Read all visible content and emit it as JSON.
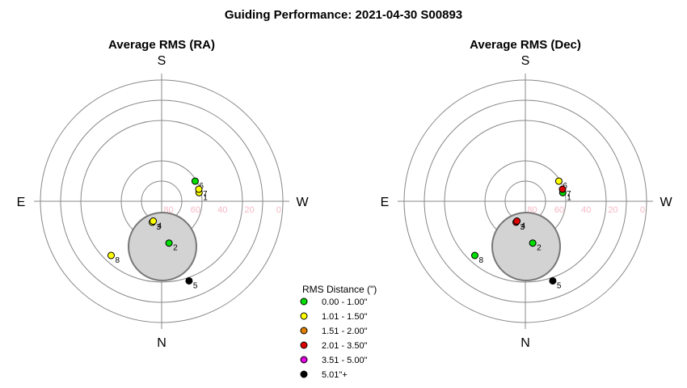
{
  "title": "Guiding Performance: 2021-04-30 S00893",
  "charts": [
    {
      "title": "Average RMS (RA)",
      "points": [
        {
          "label": "1",
          "alt": 61.5,
          "az": 283,
          "category": 1
        },
        {
          "label": "2",
          "alt": 58.5,
          "az": 190,
          "category": 0
        },
        {
          "label": "3",
          "alt": 73,
          "az": 156,
          "category": 1
        },
        {
          "label": "4",
          "alt": 74,
          "az": 157,
          "category": 1
        },
        {
          "label": "5",
          "alt": 27.5,
          "az": 199,
          "category": 5
        },
        {
          "label": "6",
          "alt": 61,
          "az": 301,
          "category": 0
        },
        {
          "label": "7",
          "alt": 61,
          "az": 288,
          "category": 1
        },
        {
          "label": "8",
          "alt": 35,
          "az": 137,
          "category": 1
        }
      ]
    },
    {
      "title": "Average RMS (Dec)",
      "points": [
        {
          "label": "1",
          "alt": 61.5,
          "az": 283,
          "category": 0
        },
        {
          "label": "2",
          "alt": 58.5,
          "az": 190,
          "category": 0
        },
        {
          "label": "3",
          "alt": 73,
          "az": 156,
          "category": 3
        },
        {
          "label": "4",
          "alt": 74,
          "az": 157,
          "category": 3
        },
        {
          "label": "5",
          "alt": 27.5,
          "az": 199,
          "category": 5
        },
        {
          "label": "6",
          "alt": 61,
          "az": 301,
          "category": 1
        },
        {
          "label": "7",
          "alt": 61,
          "az": 288,
          "category": 3
        },
        {
          "label": "8",
          "alt": 35,
          "az": 137,
          "category": 0
        }
      ]
    }
  ],
  "directions": {
    "top": "S",
    "bottom": "N",
    "left": "E",
    "right": "W"
  },
  "alt_ticks": [
    "80",
    "60",
    "40",
    "20",
    "0"
  ],
  "moon_label": "",
  "legend": {
    "title": "RMS Distance (\")",
    "items": [
      {
        "label": "0.00 - 1.00\"",
        "color": "#00dd00"
      },
      {
        "label": "1.01 - 1.50\"",
        "color": "#ffff00"
      },
      {
        "label": "1.51 - 2.00\"",
        "color": "#e08000"
      },
      {
        "label": "2.01 - 3.50\"",
        "color": "#dd0000"
      },
      {
        "label": "3.51 - 5.00\"",
        "color": "#dd00dd"
      },
      {
        "label": "5.01\"+",
        "color": "#000000"
      }
    ]
  },
  "chart_data": [
    {
      "type": "scatter",
      "title": "Average RMS (RA)",
      "coordinates": "polar alt-az (altitude deg, azimuth deg)",
      "x": [
        283,
        190,
        156,
        157,
        199,
        301,
        288,
        137
      ],
      "y": [
        61.5,
        58.5,
        73,
        74,
        27.5,
        61,
        61,
        35
      ],
      "point_labels": [
        "1",
        "2",
        "3",
        "4",
        "5",
        "6",
        "7",
        "8"
      ],
      "rms_category": [
        "1.01 - 1.50\"",
        "0.00 - 1.00\"",
        "1.01 - 1.50\"",
        "1.01 - 1.50\"",
        "5.01\"+",
        "0.00 - 1.00\"",
        "1.01 - 1.50\"",
        "1.01 - 1.50\""
      ],
      "radial_ticks": [
        80,
        60,
        40,
        20,
        0
      ]
    },
    {
      "type": "scatter",
      "title": "Average RMS (Dec)",
      "coordinates": "polar alt-az (altitude deg, azimuth deg)",
      "x": [
        283,
        190,
        156,
        157,
        199,
        301,
        288,
        137
      ],
      "y": [
        61.5,
        58.5,
        73,
        74,
        27.5,
        61,
        61,
        35
      ],
      "point_labels": [
        "1",
        "2",
        "3",
        "4",
        "5",
        "6",
        "7",
        "8"
      ],
      "rms_category": [
        "0.00 - 1.00\"",
        "0.00 - 1.00\"",
        "2.01 - 3.50\"",
        "2.01 - 3.50\"",
        "5.01\"+",
        "1.01 - 1.50\"",
        "2.01 - 3.50\"",
        "0.00 - 1.00\""
      ],
      "radial_ticks": [
        80,
        60,
        40,
        20,
        0
      ]
    }
  ]
}
